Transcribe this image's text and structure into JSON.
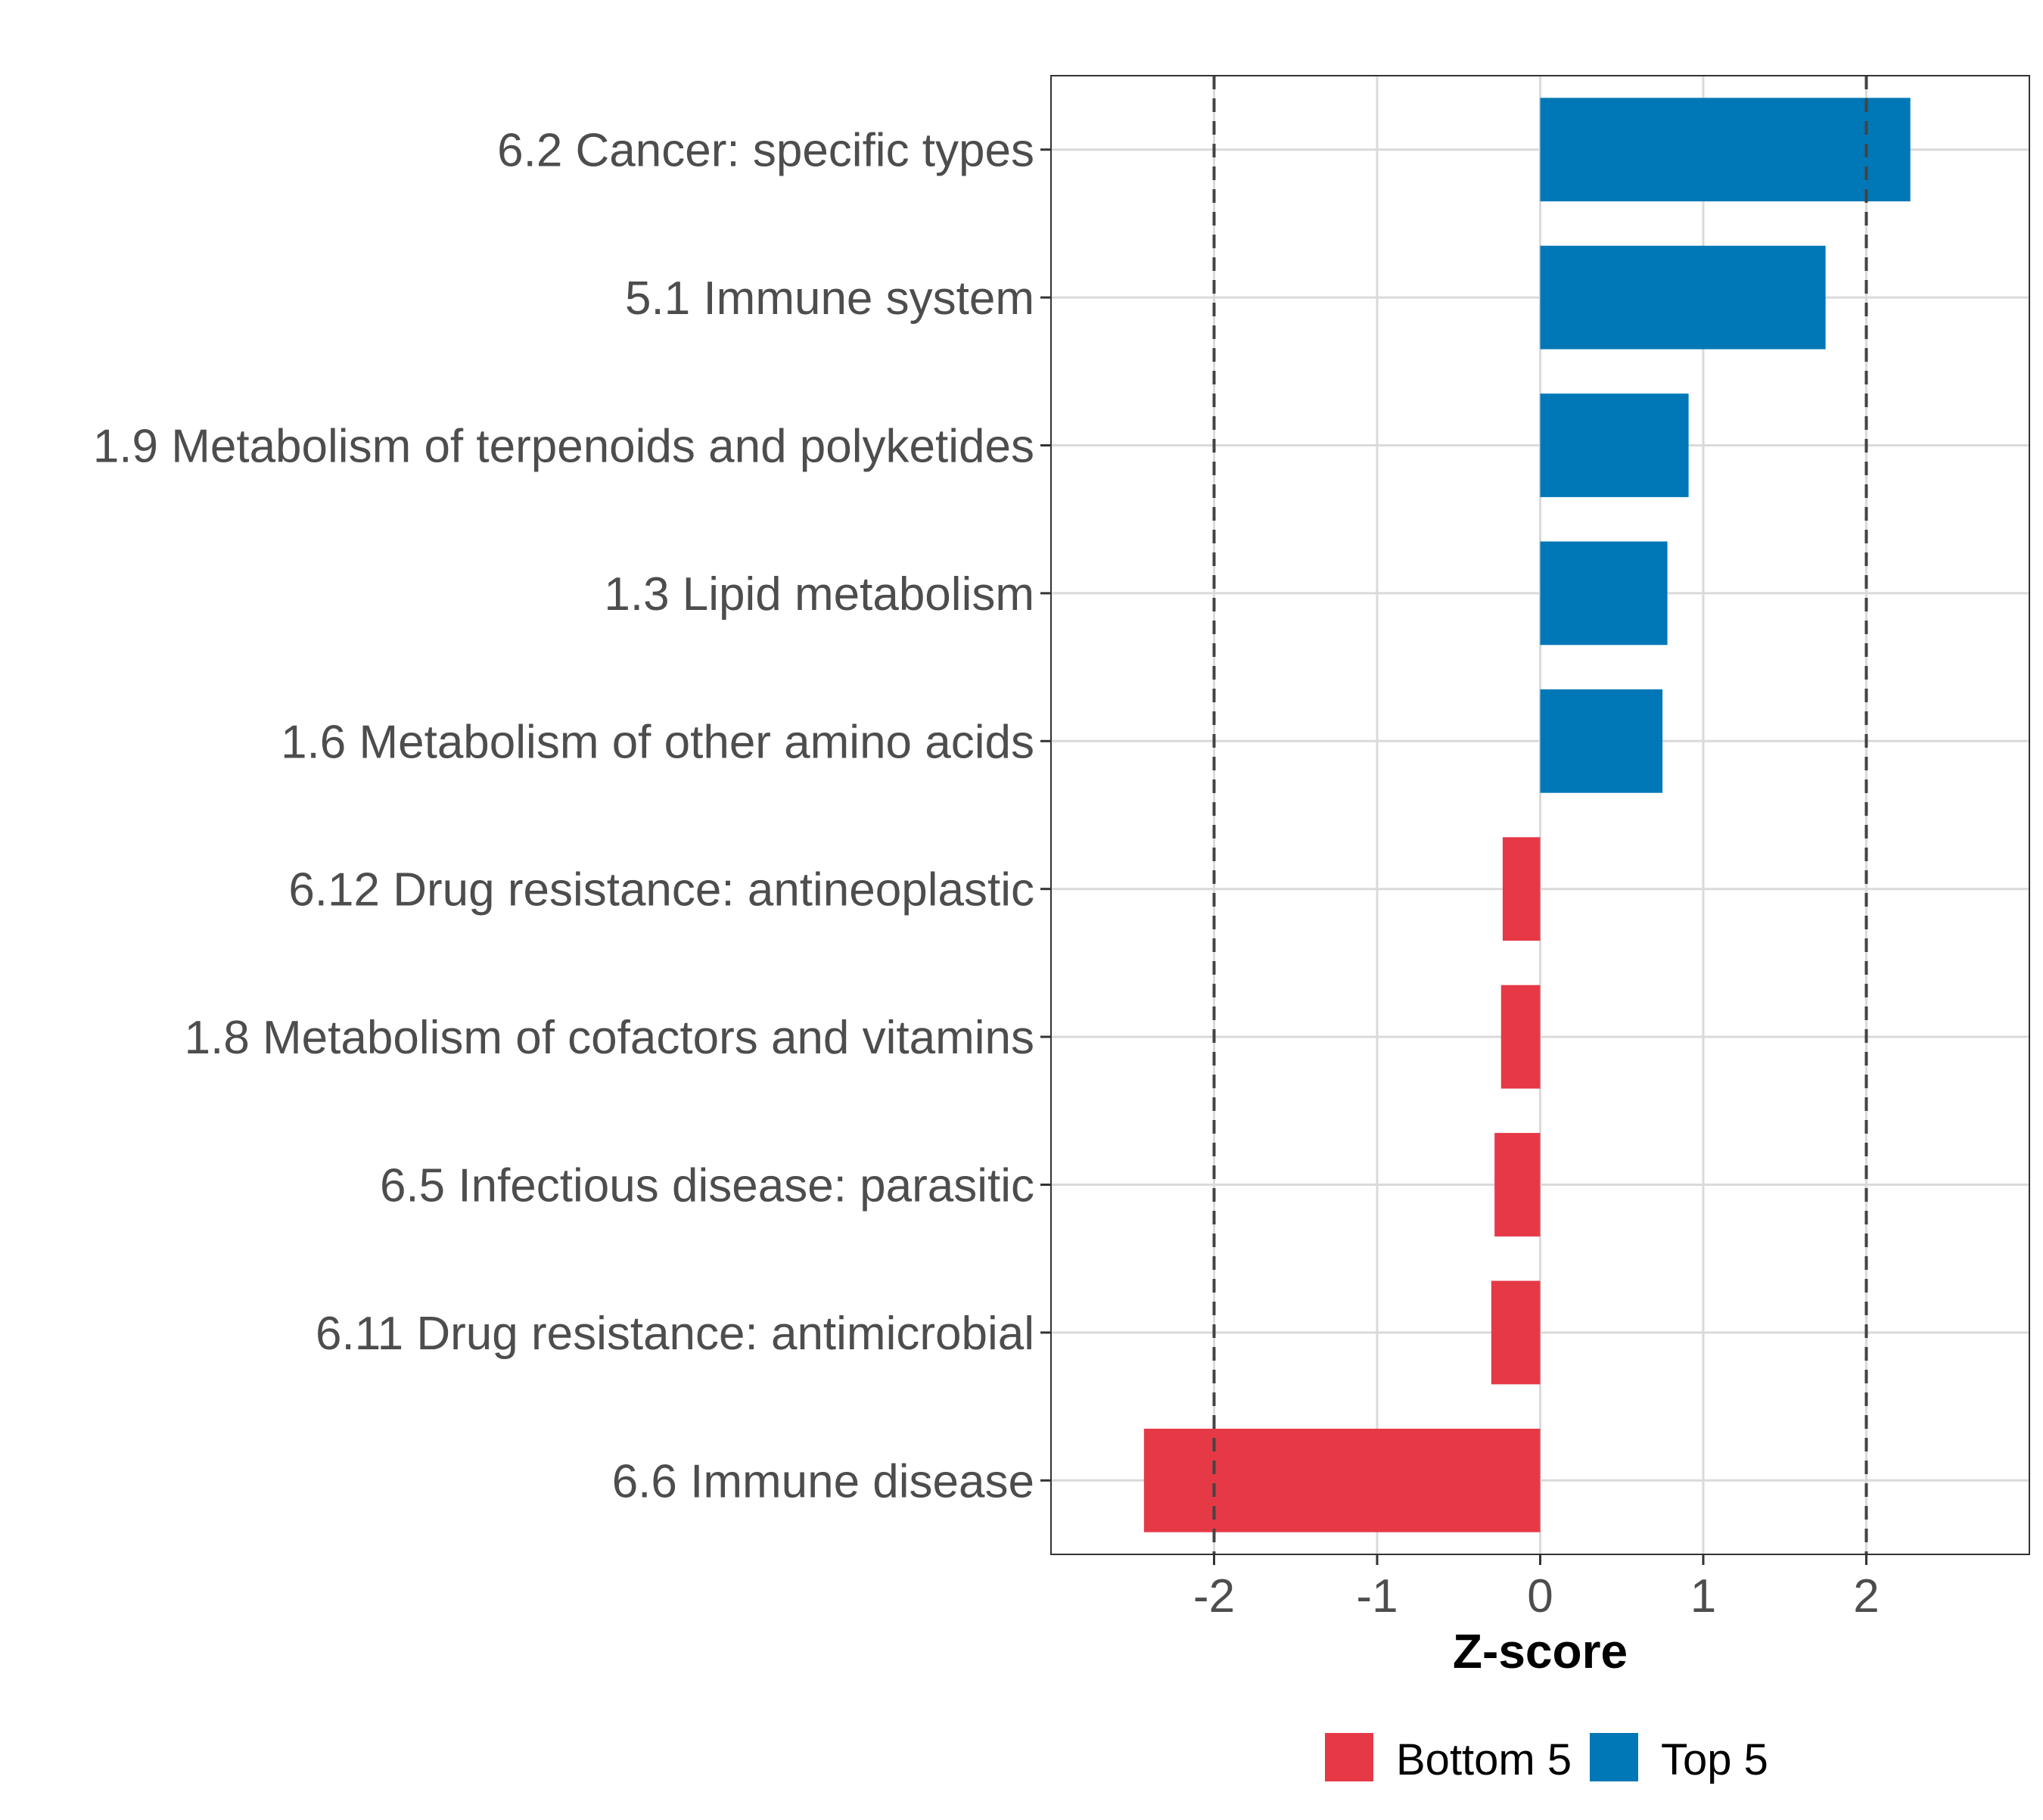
{
  "chart_data": {
    "type": "bar",
    "orientation": "horizontal",
    "title": "",
    "xlabel": "Z-score",
    "ylabel": "",
    "xlim": [
      -3.0,
      3.0
    ],
    "x_ticks": [
      -2,
      -1,
      0,
      1,
      2
    ],
    "x_tick_labels": [
      "-2",
      "-1",
      "0",
      "1",
      "2"
    ],
    "reference_lines": [
      -2,
      2
    ],
    "grid": true,
    "legend_position": "bottom",
    "categories": [
      "6.2 Cancer: specific types",
      "5.1 Immune system",
      "1.9 Metabolism of terpenoids and polyketides",
      "1.3 Lipid metabolism",
      "1.6 Metabolism of other amino acids",
      "6.12 Drug resistance: antineoplastic",
      "1.8 Metabolism of cofactors and vitamins",
      "6.5 Infectious disease: parasitic",
      "6.11 Drug resistance: antimicrobial",
      "6.6 Immune disease"
    ],
    "values": [
      2.27,
      1.75,
      0.91,
      0.78,
      0.75,
      -0.23,
      -0.24,
      -0.28,
      -0.3,
      -2.43
    ],
    "groups": [
      "Top 5",
      "Top 5",
      "Top 5",
      "Top 5",
      "Top 5",
      "Bottom 5",
      "Bottom 5",
      "Bottom 5",
      "Bottom 5",
      "Bottom 5"
    ],
    "legend": [
      {
        "label": "Bottom 5",
        "color": "#E63946"
      },
      {
        "label": "Top 5",
        "color": "#0077B6"
      }
    ]
  }
}
